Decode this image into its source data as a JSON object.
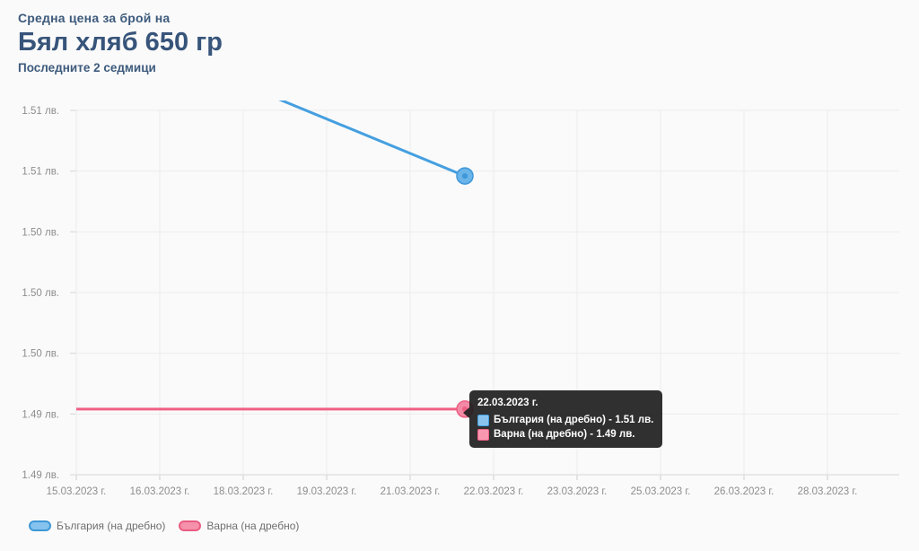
{
  "header": {
    "supertitle": "Средна цена за брой на",
    "title": "Бял хляб 650 гр",
    "subtitle": "Последните 2 седмици"
  },
  "chart_data": {
    "type": "line",
    "title": "Бял хляб 650 гр",
    "xlabel": "",
    "ylabel": "",
    "grid": true,
    "legend_position": "bottom-left",
    "x_tick_labels": [
      "15.03.2023 г.",
      "16.03.2023 г.",
      "18.03.2023 г.",
      "19.03.2023 г.",
      "21.03.2023 г.",
      "22.03.2023 г.",
      "23.03.2023 г.",
      "25.03.2023 г.",
      "26.03.2023 г.",
      "28.03.2023 г."
    ],
    "y_tick_labels": [
      "1.51 лв.",
      "1.51 лв.",
      "1.50 лв.",
      "1.50 лв.",
      "1.50 лв.",
      "1.49 лв.",
      "1.49 лв."
    ],
    "y_range": [
      1.4875,
      1.5125
    ],
    "currency": "лв.",
    "series": [
      {
        "name": "България (на дребно)",
        "line_color": "#459fe0",
        "marker_fill": "#6ab4e9",
        "marker_stroke": "#3e97d8",
        "points": [
          {
            "x": "15.03.2023 г.",
            "y": 1.519
          },
          {
            "x": "22.03.2023 г.",
            "y": 1.508
          }
        ],
        "last_value_display": "1.51 лв.",
        "note": "line clipped at top edge of plot before 19.03"
      },
      {
        "name": "Варна (на дребно)",
        "line_color": "#ef5f84",
        "marker_fill": "#f28aa5",
        "marker_stroke": "#ee5f85",
        "points": [
          {
            "x": "15.03.2023 г.",
            "y": 1.492
          },
          {
            "x": "22.03.2023 г.",
            "y": 1.492
          }
        ],
        "last_value_display": "1.49 лв."
      }
    ]
  },
  "tooltip": {
    "date": "22.03.2023 г.",
    "rows": [
      {
        "series": "България (на дребно)",
        "value": "1.51 лв.",
        "text": "България (на дребно) - 1.51 лв.",
        "box_fill": "#8ac4ee",
        "box_border": "#459fe0"
      },
      {
        "series": "Варна (на дребно)",
        "value": "1.49 лв.",
        "text": "Варна (на дребно) - 1.49 лв.",
        "box_fill": "#f797b0",
        "box_border": "#ee5f85"
      }
    ]
  },
  "legend": {
    "items": [
      {
        "label": "България (на дребно)",
        "fill": "#85c3ee",
        "border": "#3f97d6"
      },
      {
        "label": "Варна (на дребно)",
        "fill": "#f591ab",
        "border": "#ea5c82"
      }
    ]
  },
  "colors": {
    "header_text": "#3d5a7c",
    "axis_label": "#8d8d8d",
    "gridline": "#ececec",
    "axis_line": "#d6d6d6",
    "tooltip_bg": "#1e1e1e",
    "background": "#fafafa"
  }
}
